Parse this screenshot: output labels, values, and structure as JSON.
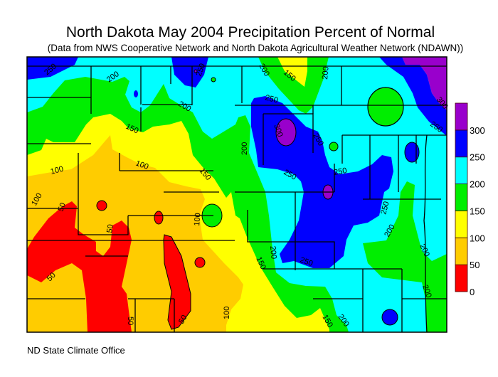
{
  "header": {
    "title": "North Dakota May 2004 Precipitation Percent of Normal",
    "subtitle": "(Data from NWS Cooperative Network and North Dakota Agricultural Weather Network (NDAWN))"
  },
  "footer": {
    "credit": "ND State Climate Office"
  },
  "legend": {
    "bands": [
      {
        "range": "0-50",
        "color": "#ff0000"
      },
      {
        "range": "50-100",
        "color": "#ffcc00"
      },
      {
        "range": "100-150",
        "color": "#ffff00"
      },
      {
        "range": "150-200",
        "color": "#00ee00"
      },
      {
        "range": "200-250",
        "color": "#00ffff"
      },
      {
        "range": "250-300",
        "color": "#0000ff"
      },
      {
        "range": "300+",
        "color": "#9900cc"
      }
    ],
    "ticks": [
      "0",
      "50",
      "100",
      "150",
      "200",
      "250",
      "300"
    ]
  },
  "contour_labels": [
    "250",
    "200",
    "250",
    "200",
    "150",
    "200",
    "150",
    "100",
    "100",
    "100",
    "150",
    "200",
    "250",
    "300",
    "250",
    "250",
    "200",
    "250",
    "250",
    "300",
    "250",
    "50",
    "50",
    "50",
    "50",
    "50",
    "100",
    "150",
    "200",
    "150",
    "200",
    "200",
    "200",
    "200",
    "250",
    "100"
  ]
}
